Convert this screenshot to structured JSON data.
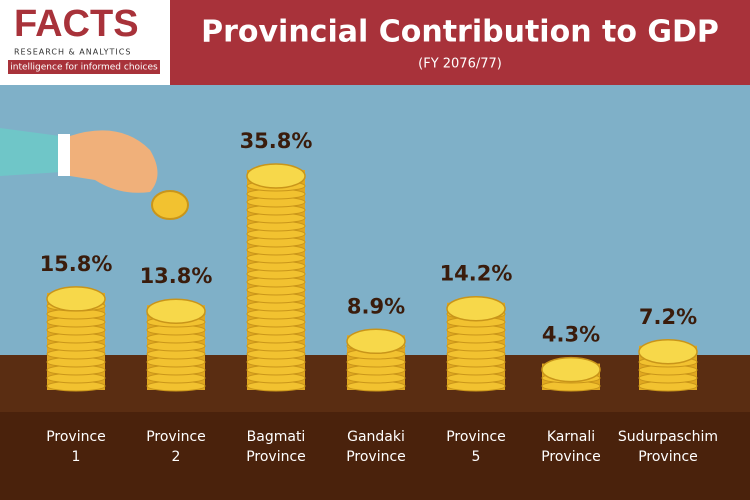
{
  "logo": {
    "name": "FACTS",
    "line": "RESEARCH & ANALYTICS",
    "tagline": "intelligence for informed choices"
  },
  "chart_data": {
    "type": "bar",
    "title": "Provincial Contribution to GDP",
    "subtitle": "(FY 2076/77)",
    "categories": [
      "Province 1",
      "Province 2",
      "Bagmati Province",
      "Gandaki Province",
      "Province 5",
      "Karnali Province",
      "Sudurpaschim Province"
    ],
    "values": [
      15.8,
      13.8,
      35.8,
      8.9,
      14.2,
      4.3,
      7.2
    ],
    "value_labels": [
      "15.8%",
      "13.8%",
      "35.8%",
      "8.9%",
      "14.2%",
      "4.3%",
      "7.2%"
    ],
    "color": "#f2c230"
  }
}
